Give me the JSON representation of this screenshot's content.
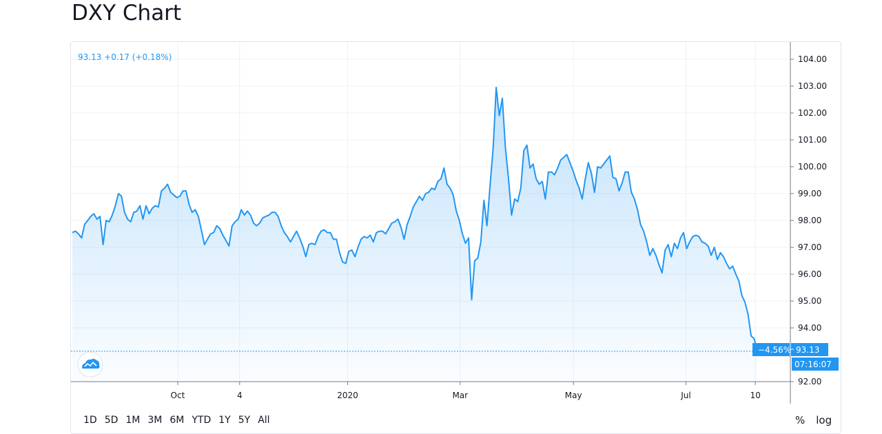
{
  "page": {
    "title": "DXY Chart"
  },
  "legend": {
    "text": "93.13  +0.17 (+0.18%)"
  },
  "price_badge": {
    "change": "−4.56%",
    "price": "93.13",
    "time": "07:16:07"
  },
  "colors": {
    "line": "#2196f3",
    "fill": "#2196f3",
    "badge": "#2196f3",
    "grid": "#e0e3eb"
  },
  "logo_icon": "tradingview-cloud-icon",
  "ranges": [
    "1D",
    "5D",
    "1M",
    "3M",
    "6M",
    "YTD",
    "1Y",
    "5Y",
    "All"
  ],
  "scale_options": [
    "%",
    "log"
  ],
  "chart_data": {
    "type": "area",
    "title": "",
    "xlabel": "",
    "ylabel": "",
    "ylim": [
      92,
      104.4
    ],
    "grid": true,
    "yticks": [
      "104.00",
      "103.00",
      "102.00",
      "101.00",
      "100.00",
      "99.00",
      "98.00",
      "97.00",
      "96.00",
      "95.00",
      "94.00",
      "92.00"
    ],
    "x_ticks": [
      {
        "label": "Oct",
        "t": 0.1416
      },
      {
        "label": "4",
        "t": 0.2248
      },
      {
        "label": "2020",
        "t": 0.3699
      },
      {
        "label": "Mar",
        "t": 0.5211
      },
      {
        "label": "May",
        "t": 0.6733
      },
      {
        "label": "Jul",
        "t": 0.8245
      },
      {
        "label": "10",
        "t": 0.9178
      }
    ],
    "series": [
      {
        "values": [
          97.55,
          97.6,
          97.5,
          97.35,
          97.85,
          98.0,
          98.15,
          98.25,
          98.05,
          98.15,
          97.1,
          98.0,
          97.95,
          98.2,
          98.55,
          99.0,
          98.9,
          98.3,
          98.05,
          97.95,
          98.3,
          98.35,
          98.55,
          98.05,
          98.55,
          98.25,
          98.45,
          98.55,
          98.5,
          99.1,
          99.2,
          99.35,
          99.05,
          98.95,
          98.85,
          98.9,
          99.1,
          99.1,
          98.6,
          98.3,
          98.4,
          98.15,
          97.65,
          97.1,
          97.3,
          97.5,
          97.55,
          97.8,
          97.7,
          97.45,
          97.25,
          97.05,
          97.8,
          97.95,
          98.05,
          98.4,
          98.2,
          98.35,
          98.2,
          97.9,
          97.8,
          97.9,
          98.1,
          98.15,
          98.2,
          98.3,
          98.3,
          98.15,
          97.8,
          97.55,
          97.4,
          97.2,
          97.4,
          97.6,
          97.35,
          97.05,
          96.65,
          97.1,
          97.15,
          97.1,
          97.4,
          97.6,
          97.65,
          97.55,
          97.55,
          97.3,
          97.3,
          96.8,
          96.45,
          96.4,
          96.85,
          96.9,
          96.65,
          97.0,
          97.3,
          97.4,
          97.35,
          97.45,
          97.2,
          97.55,
          97.6,
          97.6,
          97.5,
          97.7,
          97.9,
          97.95,
          98.05,
          97.75,
          97.3,
          97.85,
          98.15,
          98.5,
          98.7,
          98.9,
          98.75,
          99.0,
          99.05,
          99.2,
          99.15,
          99.45,
          99.55,
          99.95,
          99.35,
          99.2,
          98.95,
          98.35,
          98.0,
          97.5,
          97.15,
          97.35,
          95.05,
          96.5,
          96.6,
          97.2,
          98.75,
          97.8,
          99.3,
          100.7,
          102.95,
          101.9,
          102.55,
          100.7,
          99.55,
          98.2,
          98.8,
          98.7,
          99.2,
          100.6,
          100.8,
          99.95,
          100.1,
          99.55,
          99.35,
          99.45,
          98.8,
          99.8,
          99.8,
          99.7,
          99.95,
          100.25,
          100.35,
          100.45,
          100.15,
          99.85,
          99.5,
          99.2,
          98.8,
          99.55,
          100.15,
          99.75,
          99.05,
          100.0,
          99.95,
          100.1,
          100.25,
          100.4,
          99.6,
          99.55,
          99.1,
          99.4,
          99.8,
          99.8,
          99.05,
          98.8,
          98.4,
          97.85,
          97.6,
          97.2,
          96.7,
          96.95,
          96.7,
          96.35,
          96.05,
          96.9,
          97.1,
          96.65,
          97.15,
          96.95,
          97.35,
          97.55,
          96.95,
          97.2,
          97.4,
          97.45,
          97.4,
          97.2,
          97.15,
          97.05,
          96.7,
          97.0,
          96.55,
          96.8,
          96.65,
          96.4,
          96.2,
          96.3,
          96.0,
          95.75,
          95.2,
          94.95,
          94.5,
          93.7,
          93.6,
          93.13
        ]
      }
    ]
  }
}
